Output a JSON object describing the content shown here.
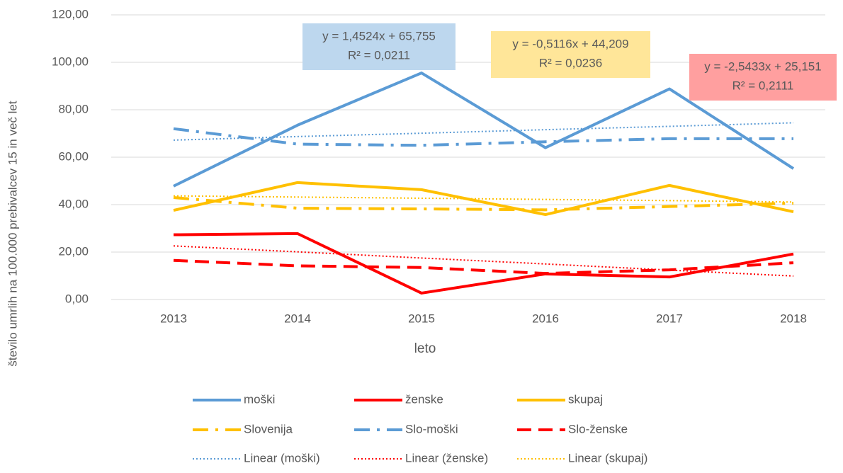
{
  "chart_data": {
    "type": "line",
    "x_label": "leto",
    "y_label": "število umrlih na 100.000 prebivalcev 15 in več let",
    "categories": [
      "2013",
      "2014",
      "2015",
      "2016",
      "2017",
      "2018"
    ],
    "ylim": [
      0,
      120
    ],
    "yticks": [
      {
        "value": 0,
        "label": "0,00"
      },
      {
        "value": 20,
        "label": "20,00"
      },
      {
        "value": 40,
        "label": "40,00"
      },
      {
        "value": 60,
        "label": "60,00"
      },
      {
        "value": 80,
        "label": "80,00"
      },
      {
        "value": 100,
        "label": "100,00"
      },
      {
        "value": 120,
        "label": "120,00"
      }
    ],
    "grid": true,
    "legend": "bottom",
    "series": [
      {
        "name": "moški",
        "color": "#5b9bd5",
        "dash": "solid",
        "values": [
          47.8,
          73.5,
          95.5,
          64.0,
          88.8,
          55.2
        ]
      },
      {
        "name": "ženske",
        "color": "#ff0000",
        "dash": "solid",
        "values": [
          27.3,
          27.8,
          2.7,
          10.8,
          9.5,
          19.2
        ]
      },
      {
        "name": "skupaj",
        "color": "#ffc000",
        "dash": "solid",
        "values": [
          37.6,
          49.3,
          46.3,
          35.8,
          48.1,
          37.0
        ]
      },
      {
        "name": "Slovenija",
        "color": "#ffc000",
        "dash": "dashdot",
        "values": [
          43.0,
          38.5,
          38.2,
          37.8,
          39.2,
          40.6
        ]
      },
      {
        "name": "Slo-moški",
        "color": "#5b9bd5",
        "dash": "dashdot",
        "values": [
          72.0,
          65.5,
          65.0,
          66.5,
          67.8,
          67.8
        ]
      },
      {
        "name": "Slo-ženske",
        "color": "#ff0000",
        "dash": "dash",
        "values": [
          16.5,
          14.2,
          13.5,
          11.0,
          12.5,
          15.5
        ]
      },
      {
        "name": "Linear (moški)",
        "color": "#5b9bd5",
        "dash": "dot",
        "values": [
          67.2,
          68.7,
          70.1,
          71.6,
          73.0,
          74.5
        ]
      },
      {
        "name": "Linear (ženske)",
        "color": "#ff0000",
        "dash": "dot",
        "values": [
          22.6,
          20.1,
          17.5,
          15.0,
          12.4,
          9.9
        ]
      },
      {
        "name": "Linear (skupaj)",
        "color": "#ffc000",
        "dash": "dot",
        "values": [
          43.7,
          43.2,
          42.7,
          42.2,
          41.7,
          41.1
        ]
      }
    ],
    "annotations": [
      {
        "lines": [
          "y = 1,4524x + 65,755",
          "R² = 0,0211"
        ],
        "color": "#bdd7ee"
      },
      {
        "lines": [
          "y = -0,5116x + 44,209",
          "R² = 0,0236"
        ],
        "color": "#ffe699"
      },
      {
        "lines": [
          "y = -2,5433x + 25,151",
          "R² = 0,2111"
        ],
        "color": "#ff9f9f"
      }
    ]
  }
}
